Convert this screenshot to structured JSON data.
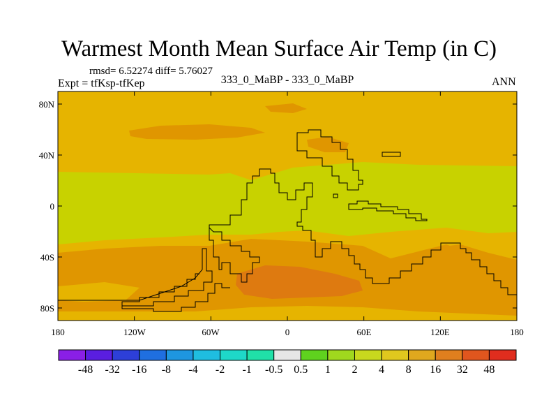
{
  "title": "Warmest Month Mean Surface Air Temp (in C)",
  "stats": "rmsd= 6.52274 diff= 5.76027",
  "experiment": "Expt = tfKsp-tfKep",
  "subtitle": "333_0_MaBP - 333_0_MaBP",
  "season": "ANN",
  "axes": {
    "x_ticks": [
      "180",
      "120W",
      "60W",
      "0",
      "60E",
      "120E",
      "180"
    ],
    "y_ticks": [
      "80N",
      "40N",
      "0",
      "40S",
      "80S"
    ]
  },
  "colorbar": {
    "labels": [
      "-48",
      "-32",
      "-16",
      "-8",
      "-4",
      "-2",
      "-1",
      "-0.5",
      "0.5",
      "1",
      "2",
      "4",
      "8",
      "16",
      "32",
      "48"
    ],
    "colors": [
      "#8a1fe6",
      "#5a1ee0",
      "#2d3fd8",
      "#1f6fe0",
      "#1e96e0",
      "#1fbde0",
      "#1ed8c8",
      "#20e0a8",
      "#e6e6e6",
      "#5fd21e",
      "#a0d81e",
      "#c8d81e",
      "#e0c81e",
      "#e0a81e",
      "#e07f1e",
      "#e0561e",
      "#e02d1e"
    ]
  },
  "field_colors": {
    "cool_band": "#c8d200",
    "warm": "#e6b400",
    "warmer": "#e09600",
    "hot": "#de7a10"
  }
}
